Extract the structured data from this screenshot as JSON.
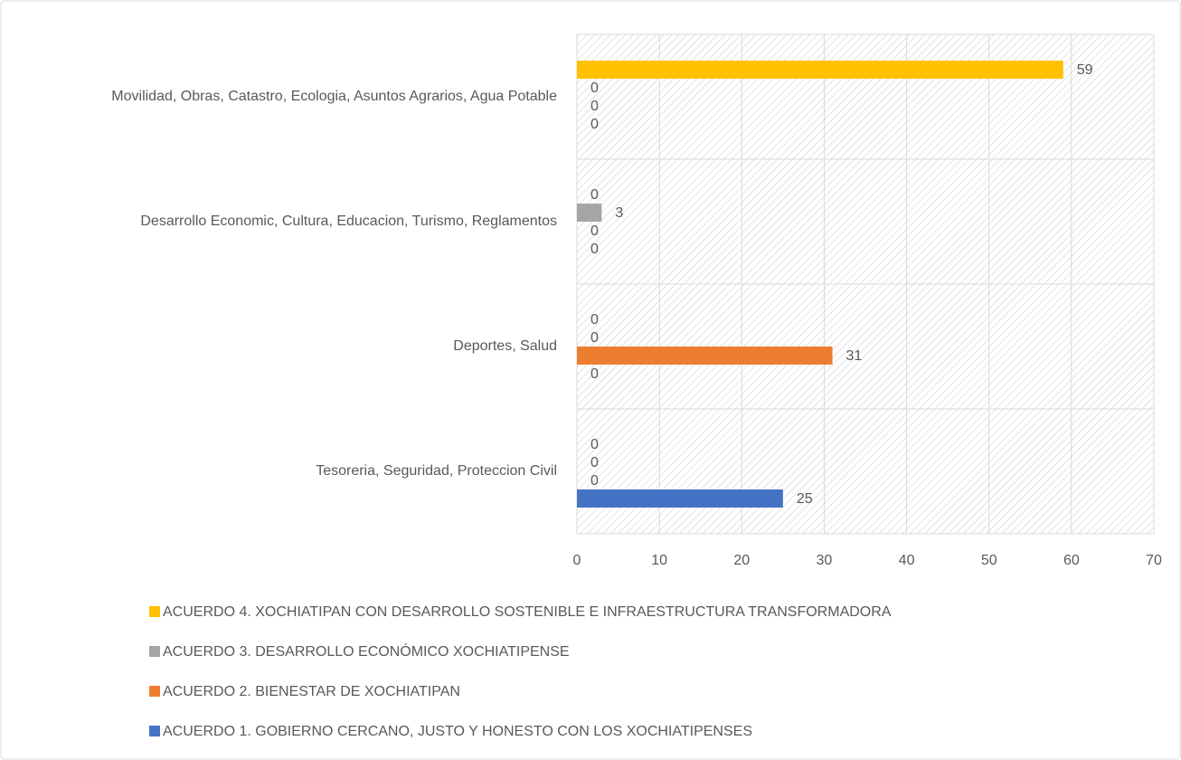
{
  "chart_data": {
    "type": "bar",
    "orientation": "horizontal",
    "categories": [
      "Tesoreria, Seguridad, Proteccion Civil",
      "Deportes, Salud",
      "Desarrollo Economic, Cultura, Educacion, Turismo, Reglamentos",
      "Movilidad, Obras, Catastro, Ecologia, Asuntos Agrarios, Agua Potable"
    ],
    "series": [
      {
        "name": "ACUERDO 1. GOBIERNO CERCANO, JUSTO Y HONESTO CON LOS XOCHIATIPENSES",
        "color": "#4472c4",
        "values": [
          25,
          0,
          0,
          0
        ]
      },
      {
        "name": "ACUERDO 2. BIENESTAR DE XOCHIATIPAN",
        "color": "#ed7d31",
        "values": [
          0,
          31,
          0,
          0
        ]
      },
      {
        "name": "ACUERDO 3. DESARROLLO ECONÓMICO XOCHIATIPENSE",
        "color": "#a5a5a5",
        "values": [
          0,
          0,
          3,
          0
        ]
      },
      {
        "name": "ACUERDO 4. XOCHIATIPAN CON DESARROLLO SOSTENIBLE E INFRAESTRUCTURA TRANSFORMADORA",
        "color": "#ffc000",
        "values": [
          0,
          0,
          0,
          59
        ]
      }
    ],
    "xlim": [
      0,
      70
    ],
    "xticks": [
      0,
      10,
      20,
      30,
      40,
      50,
      60,
      70
    ],
    "grid": true,
    "legend": "bottom"
  }
}
